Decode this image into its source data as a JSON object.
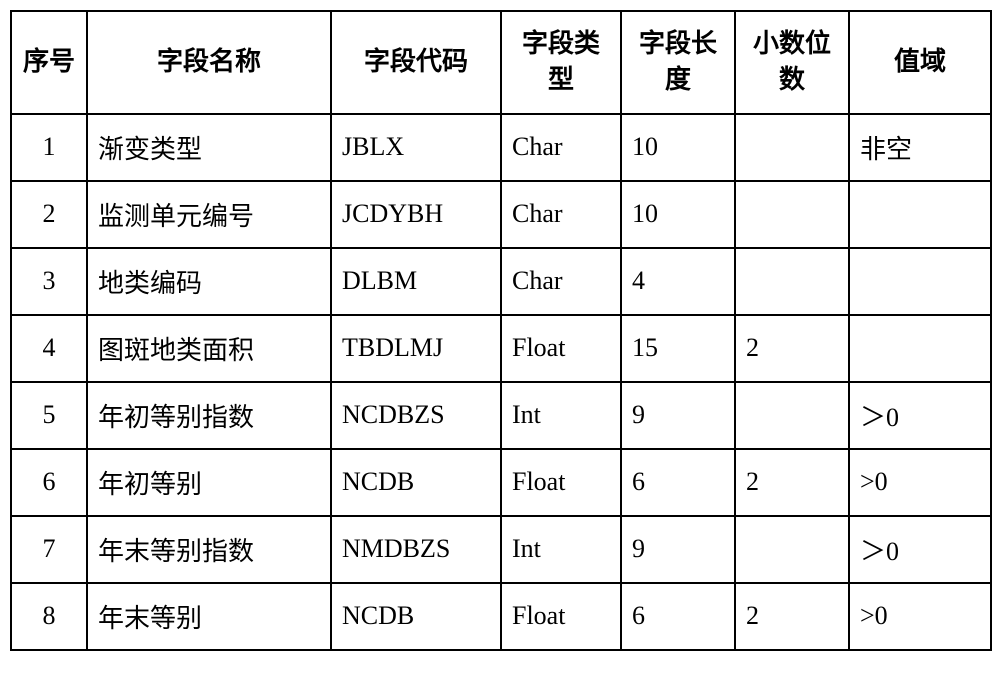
{
  "table": {
    "columns": [
      "序号",
      "字段名称",
      "字段代码",
      "字段类型",
      "字段长度",
      "小数位数",
      "值域"
    ],
    "rows": [
      {
        "seq": "1",
        "name": "渐变类型",
        "code": "JBLX",
        "type": "Char",
        "len": "10",
        "dec": "",
        "dom": "非空"
      },
      {
        "seq": "2",
        "name": "监测单元编号",
        "code": "JCDYBH",
        "type": "Char",
        "len": "10",
        "dec": "",
        "dom": ""
      },
      {
        "seq": "3",
        "name": "地类编码",
        "code": "DLBM",
        "type": "Char",
        "len": "4",
        "dec": "",
        "dom": ""
      },
      {
        "seq": "4",
        "name": "图斑地类面积",
        "code": "TBDLMJ",
        "type": "Float",
        "len": "15",
        "dec": "2",
        "dom": ""
      },
      {
        "seq": "5",
        "name": "年初等别指数",
        "code": "NCDBZS",
        "type": "Int",
        "len": "9",
        "dec": "",
        "dom": "＞0"
      },
      {
        "seq": "6",
        "name": "年初等别",
        "code": "NCDB",
        "type": "Float",
        "len": "6",
        "dec": "2",
        "dom": ">0"
      },
      {
        "seq": "7",
        "name": "年末等别指数",
        "code": "NMDBZS",
        "type": "Int",
        "len": "9",
        "dec": "",
        "dom": "＞0"
      },
      {
        "seq": "8",
        "name": "年末等别",
        "code": "NCDB",
        "type": "Float",
        "len": "6",
        "dec": "2",
        "dom": ">0"
      }
    ]
  }
}
